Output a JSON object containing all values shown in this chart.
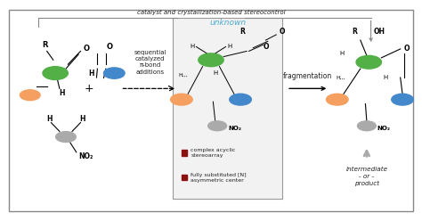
{
  "title_top": "catalyst and crystallization-based stereocontrol",
  "unknown_label": "unknown",
  "arrow_label_left": "sequential\ncatalyzed\nπ-bond\nadditions",
  "arrow_label_right": "fragmentation",
  "bullet1": "complex acyclic\nstereoarray",
  "bullet2": "fully substituted [N]\nasymmetric center",
  "bottom_right_label": "intermediate\n- or -\nproduct",
  "bg_color": "#ffffff",
  "text_color": "#222222",
  "cyan_color": "#4aabcc",
  "red_color": "#8b1010",
  "green_color": "#52b047",
  "orange_color": "#f5a060",
  "blue_color": "#4488cc",
  "gray_color": "#aaaaaa",
  "border_color": "#888888"
}
